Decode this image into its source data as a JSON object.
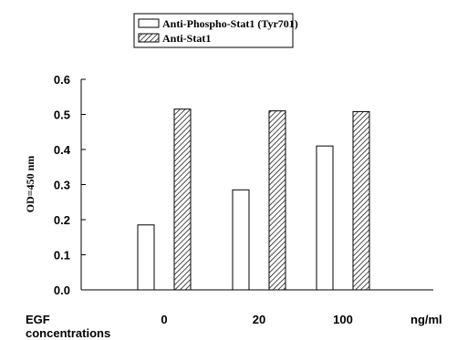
{
  "chart_data": {
    "type": "bar",
    "categories": [
      "0",
      "20",
      "100"
    ],
    "series": [
      {
        "name": "Anti-Phospho-Stat1 (Tyr701)",
        "values": [
          0.185,
          0.285,
          0.41
        ],
        "fill": "#ffffff",
        "pattern": "none"
      },
      {
        "name": "Anti-Stat1",
        "values": [
          0.515,
          0.51,
          0.508
        ],
        "fill": "#ffffff",
        "pattern": "diagonal-hatch"
      }
    ],
    "ylabel": "OD=450 nm",
    "xlabel_line1": "EGF",
    "xlabel_line2": "concentrations",
    "x_unit": "ng/ml",
    "ylim": [
      0.0,
      0.6
    ],
    "yticks": [
      "0.0",
      "0.1",
      "0.2",
      "0.3",
      "0.4",
      "0.5",
      "0.6"
    ],
    "grid": false,
    "legend_position": "top-center"
  }
}
